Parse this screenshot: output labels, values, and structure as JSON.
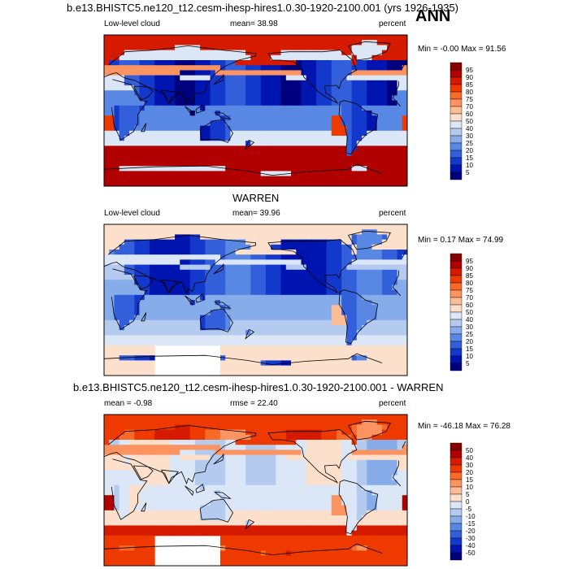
{
  "header": {
    "case_title": "b.e13.BHISTC5.ne120_t12.cesm-ihesp-hires1.0.30-1920-2100.001 (yrs 1926-1935)",
    "season": "ANN"
  },
  "panels": [
    {
      "id": "model",
      "title": "",
      "left_label": "Low-level cloud",
      "stat_label": "mean=  38.98",
      "units": "percent",
      "minmax": "Min =  -0.00 Max =  91.56"
    },
    {
      "id": "obs",
      "title": "WARREN",
      "left_label": "Low-level cloud",
      "stat_label": "mean=  39.96",
      "units": "percent",
      "minmax": "Min =   0.17 Max =  74.99"
    },
    {
      "id": "diff",
      "title": "b.e13.BHISTC5.ne120_t12.cesm-ihesp-hires1.0.30-1920-2100.001 - WARREN",
      "left_label": "mean =  -0.98",
      "stat_label": "rmse =  22.40",
      "units": "percent",
      "minmax": "Min = -46.18 Max =  76.28"
    }
  ],
  "chart_data": [
    {
      "type": "heatmap",
      "title": "",
      "variable": "Low-level cloud",
      "units": "percent",
      "mean": 38.98,
      "min": -0.0,
      "max": 91.56,
      "colorbar": {
        "levels": [
          "95",
          "90",
          "85",
          "80",
          "75",
          "70",
          "60",
          "50",
          "40",
          "30",
          "25",
          "20",
          "15",
          "10",
          "5"
        ],
        "colors": [
          "#870000",
          "#b00000",
          "#d51a00",
          "#ee3a00",
          "#f86a28",
          "#fb9460",
          "#fcbc96",
          "#fde0cc",
          "#dbe7f7",
          "#b4cbef",
          "#86acea",
          "#5988e4",
          "#3360da",
          "#1338cc",
          "#0014b0",
          "#00007e"
        ]
      }
    },
    {
      "type": "heatmap",
      "title": "WARREN",
      "variable": "Low-level cloud",
      "units": "percent",
      "mean": 39.96,
      "min": 0.17,
      "max": 74.99,
      "colorbar": {
        "levels": [
          "95",
          "90",
          "85",
          "80",
          "75",
          "70",
          "60",
          "50",
          "40",
          "30",
          "25",
          "20",
          "15",
          "10",
          "5"
        ],
        "colors": [
          "#870000",
          "#b00000",
          "#d51a00",
          "#ee3a00",
          "#f86a28",
          "#fb9460",
          "#fcbc96",
          "#fde0cc",
          "#dbe7f7",
          "#b4cbef",
          "#86acea",
          "#5988e4",
          "#3360da",
          "#1338cc",
          "#0014b0",
          "#00007e"
        ]
      }
    },
    {
      "type": "heatmap",
      "title": "b.e13.BHISTC5.ne120_t12.cesm-ihesp-hires1.0.30-1920-2100.001 - WARREN",
      "units": "percent",
      "mean": -0.98,
      "rmse": 22.4,
      "min": -46.18,
      "max": 76.28,
      "colorbar": {
        "levels": [
          "50",
          "40",
          "30",
          "20",
          "15",
          "10",
          "5",
          "0",
          "-5",
          "-10",
          "-15",
          "-20",
          "-30",
          "-40",
          "-50"
        ],
        "colors": [
          "#870000",
          "#b00000",
          "#d51a00",
          "#ee3a00",
          "#f86a28",
          "#fb9460",
          "#fcbc96",
          "#fde0cc",
          "#dbe7f7",
          "#b4cbef",
          "#86acea",
          "#5988e4",
          "#3360da",
          "#1338cc",
          "#0014b0",
          "#00007e"
        ]
      }
    }
  ]
}
